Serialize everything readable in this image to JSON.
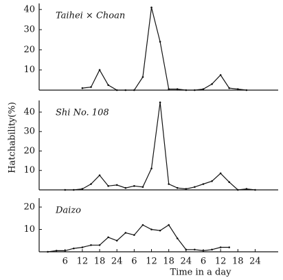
{
  "chart_data": [
    {
      "type": "line",
      "title": "Taihei × Choan",
      "color": "#111",
      "x": [
        12,
        15,
        18,
        21,
        24,
        27,
        30,
        33,
        36,
        39,
        42,
        45,
        48,
        51,
        54,
        57,
        60,
        63,
        66,
        69
      ],
      "values": [
        1,
        1.5,
        10,
        2.5,
        0,
        0,
        0,
        6.5,
        41,
        24,
        0.5,
        0.5,
        0,
        0,
        0.5,
        3,
        7.5,
        1,
        0.5,
        0
      ],
      "xlim": [
        -3,
        80
      ],
      "ylim": [
        0,
        43
      ],
      "yticks": [
        10,
        20,
        30,
        40
      ]
    },
    {
      "type": "line",
      "title": "Shi No. 108",
      "ylabel": "Hatchability(%)",
      "color": "#111",
      "x": [
        6,
        9,
        12,
        15,
        18,
        21,
        24,
        27,
        30,
        33,
        36,
        39,
        42,
        45,
        48,
        51,
        54,
        57,
        60,
        63,
        66,
        69,
        72
      ],
      "values": [
        0,
        0,
        0.5,
        3,
        7.5,
        2,
        2.5,
        1,
        2,
        1.5,
        11,
        45,
        3,
        1,
        0.5,
        1.5,
        3,
        4.5,
        8.5,
        4,
        0,
        0.5,
        0
      ],
      "xlim": [
        -3,
        80
      ],
      "ylim": [
        0,
        46
      ],
      "yticks": [
        10,
        20,
        30,
        40
      ]
    },
    {
      "type": "line",
      "title": "Daizo",
      "xlabel": "Time in a day",
      "color": "#111",
      "x": [
        0,
        3,
        6,
        9,
        12,
        15,
        18,
        21,
        24,
        27,
        30,
        33,
        36,
        39,
        42,
        45,
        48,
        51,
        54,
        57,
        60,
        63
      ],
      "values": [
        0,
        0.5,
        0.5,
        1.5,
        2,
        3,
        3,
        6.5,
        5,
        8.5,
        7.5,
        12,
        10,
        9.5,
        12,
        6,
        1,
        1,
        0.5,
        1,
        2,
        2
      ],
      "xlim": [
        -3,
        80
      ],
      "ylim": [
        0,
        24
      ],
      "yticks": [
        10,
        20
      ],
      "xticks": [
        6,
        12,
        18,
        24,
        {
          "value": 30,
          "label": "6"
        },
        {
          "value": 36,
          "label": "12"
        },
        {
          "value": 42,
          "label": "18"
        },
        {
          "value": 48,
          "label": "24"
        },
        {
          "value": 54,
          "label": "6"
        },
        {
          "value": 60,
          "label": "12"
        },
        {
          "value": 66,
          "label": "18"
        },
        {
          "value": 72,
          "label": "24"
        }
      ]
    }
  ]
}
